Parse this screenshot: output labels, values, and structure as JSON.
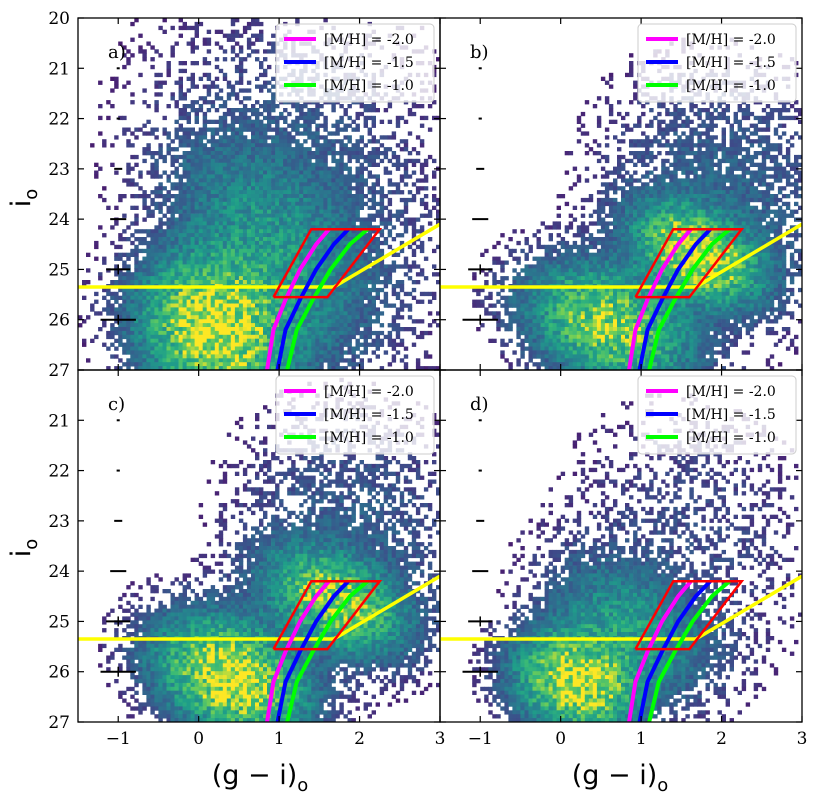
{
  "chart_data": {
    "type": "heatmap",
    "layout": "2x2 shared axes",
    "xlabel": "(g − i)",
    "xlabel_sub": "o",
    "ylabel": "i",
    "ylabel_sub": "o",
    "xlim": [
      -1.5,
      3
    ],
    "ylim": [
      27,
      20
    ],
    "x_ticks": [
      -1,
      0,
      1,
      2,
      3
    ],
    "x_tick_labels": [
      "−1",
      "0",
      "1",
      "2",
      "3"
    ],
    "y_ticks_top": [
      20,
      21,
      22,
      23,
      24,
      25,
      26,
      27
    ],
    "y_ticks_bottom": [
      21,
      22,
      23,
      24,
      25,
      26,
      27
    ],
    "legend": [
      {
        "label": "[M/H] = -2.0",
        "color": "#ff00ff"
      },
      {
        "label": "[M/H] = -1.5",
        "color": "#0000ff"
      },
      {
        "label": "[M/H] = -1.0",
        "color": "#00ff00"
      }
    ],
    "isochrones": [
      {
        "name": "[M/H] = -2.0",
        "color": "#ff00ff",
        "x": [
          0.85,
          0.93,
          1.08,
          1.26,
          1.46,
          1.62
        ],
        "y": [
          27.0,
          26.2,
          25.6,
          25.0,
          24.5,
          24.2
        ]
      },
      {
        "name": "[M/H] = -1.5",
        "color": "#0000ff",
        "x": [
          0.98,
          1.08,
          1.26,
          1.46,
          1.68,
          1.86
        ],
        "y": [
          27.0,
          26.2,
          25.6,
          25.0,
          24.5,
          24.2
        ]
      },
      {
        "name": "[M/H] = -1.0",
        "color": "#00ff00",
        "x": [
          1.1,
          1.22,
          1.42,
          1.64,
          1.88,
          2.1
        ],
        "y": [
          27.0,
          26.2,
          25.6,
          25.0,
          24.5,
          24.2
        ]
      }
    ],
    "selection_box": {
      "color": "#ff0000",
      "x": [
        0.93,
        1.4,
        2.25,
        1.6,
        0.93
      ],
      "y": [
        25.55,
        24.2,
        24.2,
        25.55,
        25.55
      ]
    },
    "completeness_cut": {
      "color": "#ffff00",
      "x": [
        -1.5,
        1.68,
        3.0
      ],
      "y": [
        25.35,
        25.35,
        24.1
      ]
    },
    "error_bars": [
      {
        "mag": 21,
        "xerr": 0.01
      },
      {
        "mag": 22,
        "xerr": 0.02
      },
      {
        "mag": 23,
        "xerr": 0.05
      },
      {
        "mag": 24,
        "xerr": 0.1
      },
      {
        "mag": 25,
        "xerr": 0.15
      },
      {
        "mag": 26,
        "xerr": 0.22
      }
    ],
    "panels": [
      {
        "label": "a)",
        "density": {
          "bins": 90,
          "seed": 11,
          "floor": 0.008,
          "blobs": [
            {
              "cx": 0.2,
              "cy": 26.2,
              "sx": 0.55,
              "sy": 0.85,
              "rho": 0.15,
              "w": 1.0
            },
            {
              "cx": 0.9,
              "cy": 24.6,
              "sx": 0.75,
              "sy": 1.3,
              "rho": 0.5,
              "w": 0.28
            },
            {
              "cx": 1.6,
              "cy": 23.4,
              "sx": 0.9,
              "sy": 1.6,
              "rho": 0.35,
              "w": 0.07
            },
            {
              "cx": 1.0,
              "cy": 21.5,
              "sx": 1.4,
              "sy": 2.0,
              "rho": 0.0,
              "w": 0.02
            }
          ]
        }
      },
      {
        "label": "b)",
        "density": {
          "bins": 90,
          "seed": 23,
          "floor": 0.01,
          "blobs": [
            {
              "cx": 0.6,
              "cy": 26.1,
              "sx": 0.6,
              "sy": 0.7,
              "rho": 0.3,
              "w": 0.7
            },
            {
              "cx": 1.7,
              "cy": 24.7,
              "sx": 0.45,
              "sy": 0.55,
              "rho": 0.4,
              "w": 0.9
            },
            {
              "cx": 2.0,
              "cy": 23.6,
              "sx": 0.9,
              "sy": 1.5,
              "rho": 0.1,
              "w": 0.1
            }
          ]
        }
      },
      {
        "label": "c)",
        "density": {
          "bins": 90,
          "seed": 37,
          "floor": 0.01,
          "blobs": [
            {
              "cx": 0.4,
              "cy": 26.1,
              "sx": 0.55,
              "sy": 0.7,
              "rho": 0.3,
              "w": 0.9
            },
            {
              "cx": 1.7,
              "cy": 24.6,
              "sx": 0.5,
              "sy": 0.6,
              "rho": 0.4,
              "w": 0.7
            },
            {
              "cx": 1.9,
              "cy": 23.3,
              "sx": 0.9,
              "sy": 1.5,
              "rho": 0.1,
              "w": 0.08
            }
          ]
        }
      },
      {
        "label": "d)",
        "density": {
          "bins": 90,
          "seed": 51,
          "floor": 0.01,
          "blobs": [
            {
              "cx": 0.2,
              "cy": 26.2,
              "sx": 0.45,
              "sy": 0.6,
              "rho": 0.15,
              "w": 1.0
            },
            {
              "cx": 0.9,
              "cy": 25.1,
              "sx": 0.6,
              "sy": 0.8,
              "rho": 0.4,
              "w": 0.3
            },
            {
              "cx": 1.6,
              "cy": 23.3,
              "sx": 1.0,
              "sy": 1.6,
              "rho": 0.1,
              "w": 0.05
            }
          ]
        }
      }
    ]
  }
}
